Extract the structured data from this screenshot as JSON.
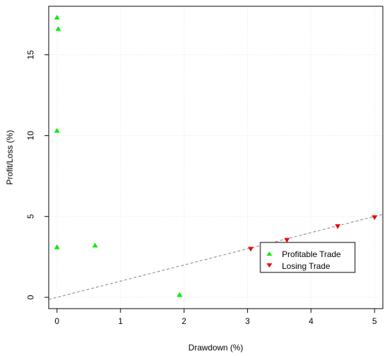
{
  "chart_data": {
    "type": "scatter",
    "title": "",
    "xlabel": "Drawdown (%)",
    "ylabel": "Profit/Loss (%)",
    "xlim": [
      -0.13,
      5.13
    ],
    "ylim": [
      -0.7,
      18.0
    ],
    "x_ticks": [
      "0",
      "1",
      "2",
      "3",
      "4",
      "5"
    ],
    "y_ticks": [
      "0",
      "5",
      "10",
      "15"
    ],
    "grid": true,
    "legend_position": "bottom-right",
    "series": [
      {
        "name": "Profitable Trade",
        "color": "#00ee00",
        "marker": "triangle-up",
        "points": [
          {
            "x": 0.0,
            "y": 17.3
          },
          {
            "x": 0.02,
            "y": 16.6
          },
          {
            "x": 0.0,
            "y": 10.3
          },
          {
            "x": 0.0,
            "y": 3.1
          },
          {
            "x": 0.6,
            "y": 3.2
          },
          {
            "x": 1.93,
            "y": 0.15
          }
        ]
      },
      {
        "name": "Losing Trade",
        "color": "#ee0000",
        "marker": "triangle-down",
        "points": [
          {
            "x": 3.05,
            "y": 3.0
          },
          {
            "x": 3.62,
            "y": 3.55
          },
          {
            "x": 4.42,
            "y": 4.4
          },
          {
            "x": 5.0,
            "y": 4.95
          }
        ]
      }
    ],
    "reference_line": {
      "style": "dashed",
      "color": "#808080",
      "x": [
        -0.13,
        5.13
      ],
      "y": [
        -0.13,
        5.13
      ]
    }
  }
}
